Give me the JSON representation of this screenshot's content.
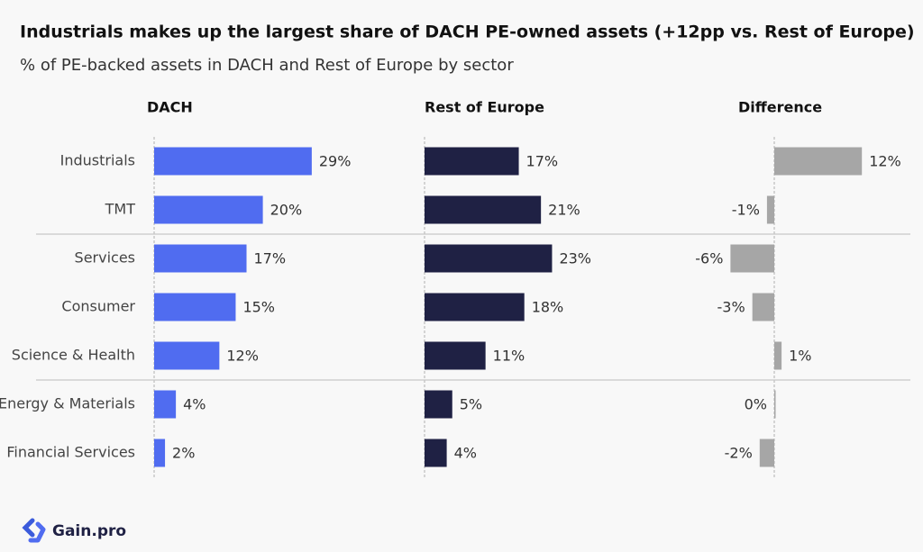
{
  "chart_data": {
    "type": "bar",
    "title": "Industrials makes up the largest share of DACH PE-owned assets (+12pp vs. Rest of Europe)",
    "subtitle": "% of PE-backed assets in DACH and Rest of Europe by sector",
    "categories": [
      "Industrials",
      "TMT",
      "Services",
      "Consumer",
      "Science & Health",
      "Energy & Materials",
      "Financial Services"
    ],
    "series": [
      {
        "name": "DACH",
        "color": "#506cf0",
        "values": [
          29,
          20,
          17,
          15,
          12,
          4,
          2
        ],
        "value_labels": [
          "29%",
          "20%",
          "17%",
          "15%",
          "12%",
          "4%",
          "2%"
        ]
      },
      {
        "name": "Rest of Europe",
        "color": "#1f2144",
        "values": [
          17,
          21,
          23,
          18,
          11,
          5,
          4
        ],
        "value_labels": [
          "17%",
          "21%",
          "23%",
          "18%",
          "11%",
          "5%",
          "4%"
        ]
      },
      {
        "name": "Difference",
        "color": "#a6a6a6",
        "values": [
          12,
          -1,
          -6,
          -3,
          1,
          0,
          -2
        ],
        "value_labels": [
          "12%",
          "-1%",
          "-6%",
          "-3%",
          "1%",
          "0%",
          "-2%"
        ]
      }
    ]
  },
  "footer": {
    "logo_text": "Gain.pro"
  }
}
